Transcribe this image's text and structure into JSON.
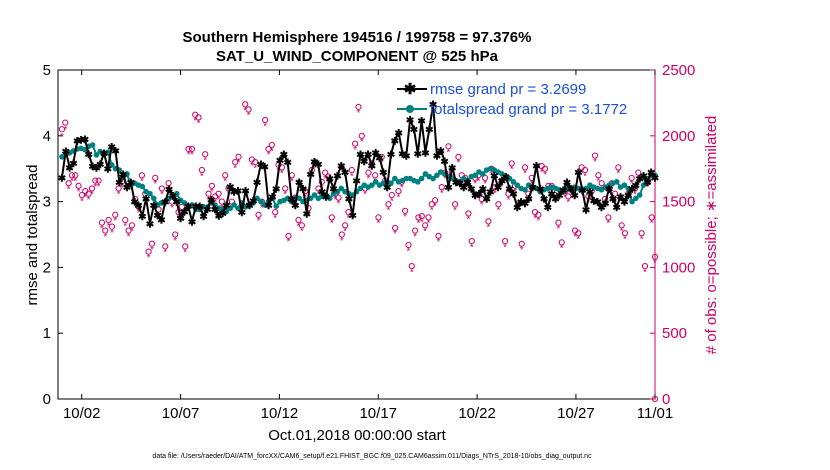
{
  "chart_data": {
    "type": "line",
    "title_lines": [
      "Southern Hemisphere 194516 / 199758 = 97.376%",
      "SAT_U_WIND_COMPONENT @ 525 hPa"
    ],
    "xlabel": "Oct.01,2018 00:00:00 start",
    "ylabel_left": "rmse and totalspread",
    "ylabel_right": "# of obs: o=possible; ∗=assimilated",
    "xlim": [
      0.8,
      31.0
    ],
    "ylim_left": [
      0,
      5
    ],
    "ylim_right": [
      0,
      2500
    ],
    "x_ticks": [
      {
        "value": 2,
        "label": "10/02"
      },
      {
        "value": 7,
        "label": "10/07"
      },
      {
        "value": 12,
        "label": "10/12"
      },
      {
        "value": 17,
        "label": "10/17"
      },
      {
        "value": 22,
        "label": "10/22"
      },
      {
        "value": 27,
        "label": "10/27"
      },
      {
        "value": 32,
        "label": "11/01"
      }
    ],
    "y_ticks_left": [
      0,
      1,
      2,
      3,
      4,
      5
    ],
    "y_ticks_right": [
      0,
      500,
      1000,
      1500,
      2000,
      2500
    ],
    "colors": {
      "rmse": "#000000",
      "spread": "#008080",
      "obs": "#cc0066",
      "legend_text": "#1a4fd6",
      "right_axis": "#cc0066"
    },
    "legend": [
      {
        "label": "rmse grand pr = 3.2699"
      },
      {
        "label": "totalspread grand pr = 3.1772"
      }
    ],
    "series": [
      {
        "name": "rmse",
        "values": [
          3.37,
          3.77,
          3.52,
          3.59,
          3.93,
          3.94,
          3.95,
          3.72,
          3.54,
          3.52,
          3.57,
          3.74,
          3.5,
          3.84,
          3.78,
          3.3,
          3.42,
          3.22,
          3.3,
          3.0,
          2.95,
          2.78,
          3.05,
          2.67,
          2.95,
          2.8,
          2.73,
          3.0,
          3.19,
          3.09,
          3.0,
          2.75,
          2.85,
          2.93,
          2.7,
          2.93,
          2.93,
          2.78,
          2.89,
          3.03,
          2.89,
          2.79,
          2.83,
          2.95,
          3.23,
          3.15,
          3.17,
          2.84,
          3.17,
          2.95,
          3.02,
          3.3,
          3.57,
          3.53,
          2.95,
          3.08,
          3.2,
          3.63,
          3.72,
          3.6,
          3.04,
          2.95,
          3.3,
          3.2,
          2.82,
          3.42,
          3.61,
          3.57,
          3.15,
          3.08,
          3.35,
          3.2,
          3.4,
          3.55,
          3.45,
          3.05,
          2.8,
          3.32,
          3.72,
          3.62,
          3.72,
          3.55,
          3.75,
          3.67,
          3.45,
          3.22,
          3.72,
          3.93,
          4.05,
          3.73,
          3.7,
          4.25,
          4.1,
          3.73,
          4.23,
          3.75,
          4.1,
          4.48,
          3.7,
          3.78,
          3.62,
          3.22,
          3.52,
          3.3,
          3.28,
          3.22,
          3.3,
          3.2,
          3.1,
          3.12,
          3.2,
          3.05,
          3.15,
          3.4,
          3.22,
          3.32,
          3.38,
          3.2,
          3.12,
          2.92,
          3.0,
          2.98,
          3.05,
          3.22,
          3.55,
          3.2,
          3.05,
          2.92,
          3.12,
          3.05,
          3.1,
          3.18,
          3.3,
          3.2,
          3.1,
          3.45,
          3.18,
          2.88,
          3.15,
          3.02,
          3.0,
          2.92,
          2.98,
          3.2,
          3.05,
          2.92,
          3.08,
          3.0,
          3.1,
          3.2,
          3.25,
          3.35,
          3.4,
          3.3,
          3.45,
          3.37
        ]
      },
      {
        "name": "totalspread",
        "values": [
          3.68,
          3.72,
          3.74,
          3.77,
          3.8,
          3.81,
          3.79,
          3.84,
          3.86,
          3.71,
          3.76,
          3.72,
          3.75,
          3.56,
          3.5,
          3.48,
          3.38,
          3.42,
          3.25,
          3.28,
          3.25,
          3.23,
          3.15,
          3.12,
          3.05,
          2.95,
          2.98,
          3.0,
          3.05,
          3.1,
          3.12,
          3.02,
          2.98,
          2.93,
          2.95,
          2.88,
          2.88,
          2.92,
          2.92,
          2.98,
          2.95,
          2.9,
          2.88,
          2.85,
          2.9,
          2.95,
          2.9,
          2.98,
          2.92,
          2.95,
          2.98,
          3.05,
          3.0,
          2.95,
          3.0,
          3.05,
          2.93,
          3.0,
          3.02,
          3.05,
          3.0,
          3.05,
          3.05,
          3.0,
          3.02,
          3.05,
          3.1,
          3.05,
          3.08,
          3.1,
          3.05,
          3.12,
          3.15,
          3.2,
          3.15,
          3.12,
          3.1,
          3.15,
          3.2,
          3.25,
          3.22,
          3.25,
          3.3,
          3.25,
          3.28,
          3.3,
          3.28,
          3.35,
          3.3,
          3.32,
          3.35,
          3.35,
          3.32,
          3.3,
          3.35,
          3.42,
          3.38,
          3.35,
          3.4,
          3.45,
          3.42,
          3.38,
          3.35,
          3.32,
          3.3,
          3.35,
          3.32,
          3.38,
          3.4,
          3.45,
          3.42,
          3.48,
          3.5,
          3.48,
          3.45,
          3.42,
          3.38,
          3.35,
          3.3,
          3.25,
          3.2,
          3.18,
          3.25,
          3.22,
          3.2,
          3.15,
          3.18,
          3.2,
          3.22,
          3.2,
          3.18,
          3.15,
          3.2,
          3.18,
          3.22,
          3.2,
          3.18,
          3.2,
          3.25,
          3.22,
          3.2,
          3.18,
          3.22,
          3.25,
          3.28,
          3.3,
          3.22,
          3.25,
          3.2,
          3.0,
          3.05,
          3.1,
          3.25,
          3.35,
          3.4,
          3.4
        ]
      },
      {
        "name": "obs_possible",
        "values": [
          2050,
          2100,
          1640,
          1700,
          1700,
          1620,
          1550,
          1580,
          1560,
          1600,
          1660,
          1660,
          1340,
          1280,
          1360,
          1310,
          1400,
          1600,
          1650,
          1360,
          1280,
          1320,
          1520,
          1460,
          1700,
          1560,
          1120,
          1180,
          1680,
          1440,
          1600,
          1160,
          1640,
          1500,
          1250,
          1420,
          1460,
          1160,
          1900,
          1900,
          2160,
          2140,
          1740,
          1860,
          1560,
          1620,
          1540,
          1560,
          1500,
          1700,
          1600,
          1500,
          1800,
          1840,
          1480,
          2240,
          2200,
          1820,
          1800,
          1400,
          1500,
          2120,
          1900,
          1930,
          1420,
          1780,
          1760,
          1600,
          1240,
          1700,
          1530,
          1360,
          1320,
          1580,
          1450,
          1740,
          1800,
          1600,
          1650,
          1720,
          1690,
          1380,
          1560,
          1530,
          1250,
          1320,
          1420,
          1740,
          1940,
          2220,
          2000,
          1600,
          1720,
          1790,
          1700,
          1380,
          1840,
          1660,
          1480,
          1550,
          1300,
          1580,
          1650,
          1430,
          1170,
          1010,
          1280,
          1380,
          1390,
          1320,
          1380,
          1480,
          1510,
          1240,
          1610,
          1720,
          1920,
          1720,
          1480,
          1840,
          1700,
          1680,
          1410,
          1200,
          1680,
          1700,
          1520,
          1680,
          1350,
          1750,
          1610,
          1480,
          1660,
          1200,
          1560,
          1790,
          1620,
          1480,
          1180,
          1760,
          1560,
          1680,
          1420,
          1400,
          1770,
          1750,
          1620,
          1620,
          1550,
          1340,
          1190,
          1580,
          1540,
          1600,
          1280,
          1260,
          1760,
          1740,
          1540,
          1580,
          1850,
          1700,
          1640,
          1520,
          1380,
          1640,
          1560,
          1760,
          1320,
          1260,
          1560,
          1680,
          1600,
          1720,
          1260,
          1010,
          1660,
          1380,
          1080
        ]
      },
      {
        "name": "obs_assimilated",
        "values": [
          2000,
          2050,
          1600,
          1660,
          1660,
          1580,
          1510,
          1540,
          1520,
          1560,
          1620,
          1620,
          1300,
          1240,
          1320,
          1270,
          1360,
          1560,
          1610,
          1320,
          1240,
          1280,
          1480,
          1420,
          1660,
          1520,
          1080,
          1140,
          1640,
          1400,
          1560,
          1120,
          1600,
          1460,
          1210,
          1380,
          1420,
          1120,
          1860,
          1860,
          2120,
          2100,
          1700,
          1820,
          1520,
          1580,
          1500,
          1520,
          1460,
          1660,
          1560,
          1460,
          1760,
          1800,
          1440,
          2200,
          2160,
          1780,
          1760,
          1360,
          1460,
          2080,
          1860,
          1890,
          1380,
          1740,
          1720,
          1560,
          1200,
          1660,
          1490,
          1320,
          1280,
          1540,
          1410,
          1700,
          1760,
          1560,
          1610,
          1680,
          1650,
          1340,
          1520,
          1490,
          1210,
          1280,
          1380,
          1700,
          1900,
          2180,
          1960,
          1560,
          1680,
          1750,
          1660,
          1340,
          1800,
          1620,
          1440,
          1510,
          1260,
          1540,
          1610,
          1390,
          1130,
          970,
          1240,
          1340,
          1350,
          1280,
          1340,
          1440,
          1470,
          1200,
          1570,
          1680,
          1880,
          1680,
          1440,
          1800,
          1660,
          1640,
          1370,
          1160,
          1640,
          1660,
          1480,
          1640,
          1310,
          1710,
          1570,
          1440,
          1620,
          1160,
          1520,
          1750,
          1580,
          1440,
          1140,
          1720,
          1520,
          1640,
          1380,
          1360,
          1730,
          1710,
          1580,
          1580,
          1510,
          1300,
          1150,
          1540,
          1500,
          1560,
          1240,
          1220,
          1720,
          1700,
          1500,
          1540,
          1810,
          1660,
          1600,
          1480,
          1340,
          1600,
          1520,
          1720,
          1280,
          1220,
          1520,
          1640,
          1560,
          1680,
          1220,
          970,
          1620,
          1340,
          1040
        ]
      }
    ]
  },
  "footnote": "data file: /Users/raeder/DAI/ATM_forcXX/CAM6_setup/f.e21.FHIST_BGC.f09_025.CAM6assim.011/Diags_NTrS_2018-10/obs_diag_output.nc"
}
